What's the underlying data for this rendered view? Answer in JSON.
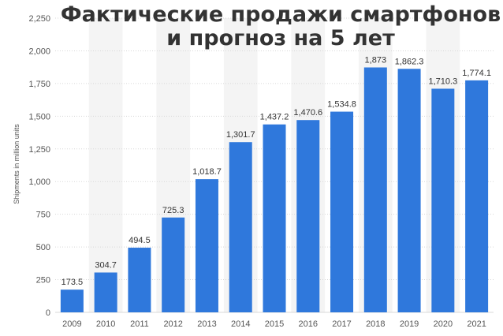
{
  "chart_data": {
    "type": "bar",
    "title_lines": [
      "Фактические продажи смартфонов",
      "и прогноз на 5 лет"
    ],
    "xlabel": "",
    "ylabel": "Shipments in million units",
    "categories": [
      "2009",
      "2010",
      "2011",
      "2012",
      "2013",
      "2014",
      "2015",
      "2016",
      "2017",
      "2018",
      "2019",
      "2020",
      "2021"
    ],
    "values": [
      173.5,
      304.7,
      494.5,
      725.3,
      1018.7,
      1301.7,
      1437.2,
      1470.6,
      1534.8,
      1873,
      1862.3,
      1710.3,
      1774.1
    ],
    "value_labels": [
      "173.5",
      "304.7",
      "494.5",
      "725.3",
      "1,018.7",
      "1,301.7",
      "1,437.2",
      "1,470.6",
      "1,534.8",
      "1,873",
      "1,862.3",
      "1,710.3",
      "1,774.1"
    ],
    "ylim": [
      0,
      2250
    ],
    "yticks": [
      0,
      250,
      500,
      750,
      1000,
      1250,
      1500,
      1750,
      2000,
      2250
    ],
    "ytick_labels": [
      "0",
      "250",
      "500",
      "750",
      "1,000",
      "1,250",
      "1,500",
      "1,750",
      "2,000",
      "2,250"
    ],
    "grid": true,
    "colors": {
      "bar": "#2f78dc",
      "band": "#f4f4f4",
      "grid": "#d8d8d8"
    }
  }
}
